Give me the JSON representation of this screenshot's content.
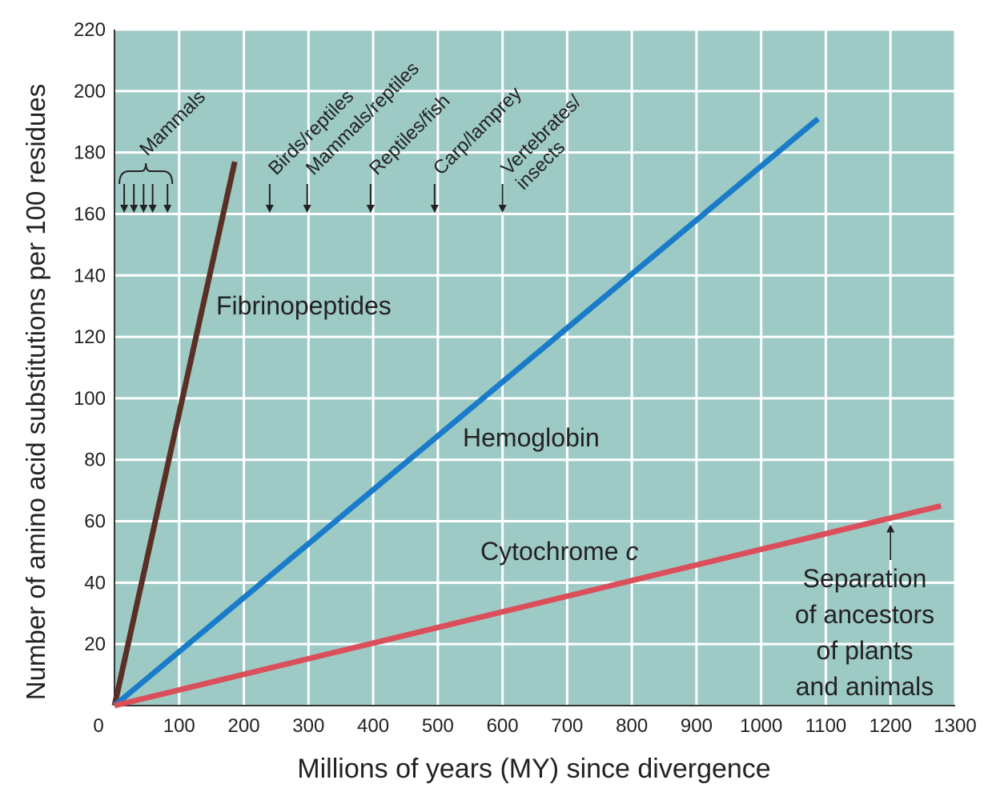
{
  "chart_data": {
    "type": "line",
    "xlabel": "Millions of years (MY) since divergence",
    "ylabel": "Number of amino acid substitutions per 100 residues",
    "xlim": [
      0,
      1300
    ],
    "ylim": [
      0,
      220
    ],
    "xticks": [
      0,
      100,
      200,
      300,
      400,
      500,
      600,
      700,
      800,
      900,
      1000,
      1100,
      1200,
      1300
    ],
    "yticks": [
      20,
      40,
      60,
      80,
      100,
      120,
      140,
      160,
      180,
      200,
      220
    ],
    "grid": true,
    "series": [
      {
        "name": "Fibrinopeptides",
        "color": "#5a3026",
        "x": [
          0,
          186
        ],
        "values": [
          0,
          177
        ]
      },
      {
        "name": "Hemoglobin",
        "color": "#1a7cc8",
        "x": [
          0,
          1088
        ],
        "values": [
          0,
          191
        ]
      },
      {
        "name": "Cytochrome",
        "name_italic": "c",
        "color": "#db4f5a",
        "x": [
          0,
          1278
        ],
        "values": [
          0,
          65
        ]
      }
    ],
    "annotations": [
      {
        "lines": [
          "Mammals"
        ],
        "arrows_x": [
          15,
          30,
          45,
          59,
          82
        ]
      },
      {
        "lines": [
          "Birds/reptiles"
        ],
        "arrows_x": [
          240
        ]
      },
      {
        "lines": [
          "Mammals/reptiles"
        ],
        "arrows_x": [
          298
        ]
      },
      {
        "lines": [
          "Reptiles/fish"
        ],
        "arrows_x": [
          396
        ]
      },
      {
        "lines": [
          "Carp/lamprey"
        ],
        "arrows_x": [
          495
        ]
      },
      {
        "lines": [
          "Vertebrates/",
          "insects"
        ],
        "arrows_x": [
          600
        ]
      }
    ],
    "separation": {
      "lines": [
        "Separation",
        "of ancestors",
        "of plants",
        "and animals"
      ],
      "x": 1200,
      "y": 60
    }
  }
}
